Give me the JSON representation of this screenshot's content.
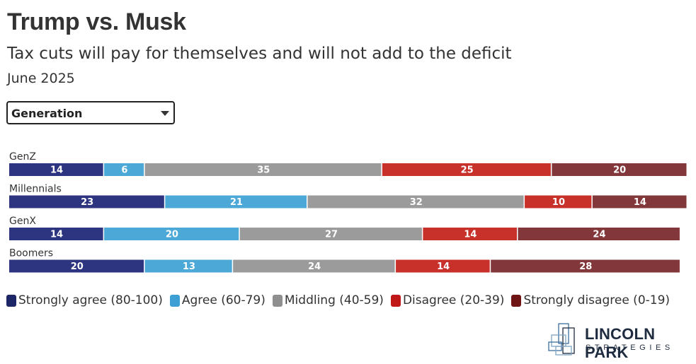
{
  "header": {
    "title": "Trump vs. Musk",
    "subtitle": "Tax cuts will pay for themselves and will not add to the deficit",
    "date": "June 2025"
  },
  "filter": {
    "selected": "Generation"
  },
  "colors": {
    "strongly_agree": "#2e3580",
    "agree": "#4ca8d6",
    "middling": "#9b9b9b",
    "disagree": "#c8302a",
    "strongly_disagree": "#82373a"
  },
  "chart_data": {
    "type": "bar",
    "orientation": "horizontal",
    "stacked": true,
    "title": "Trump vs. Musk",
    "subtitle": "Tax cuts will pay for themselves and will not add to the deficit",
    "categories": [
      "GenZ",
      "Millennials",
      "GenX",
      "Boomers"
    ],
    "series": [
      {
        "name": "Strongly agree (80-100)",
        "key": "strongly_agree",
        "values": [
          14,
          23,
          14,
          20
        ]
      },
      {
        "name": "Agree (60-79)",
        "key": "agree",
        "values": [
          6,
          21,
          20,
          13
        ]
      },
      {
        "name": "Middling (40-59)",
        "key": "middling",
        "values": [
          35,
          32,
          27,
          24
        ]
      },
      {
        "name": "Disagree (20-39)",
        "key": "disagree",
        "values": [
          25,
          10,
          14,
          14
        ]
      },
      {
        "name": "Strongly disagree (0-19)",
        "key": "strongly_disagree",
        "values": [
          20,
          14,
          24,
          28
        ]
      }
    ],
    "xlim": [
      0,
      100
    ],
    "legend_position": "bottom-left",
    "data_labels": true,
    "grid": false
  },
  "logo": {
    "line1": "LINCOLN PARK",
    "line2": "STRATEGIES"
  }
}
